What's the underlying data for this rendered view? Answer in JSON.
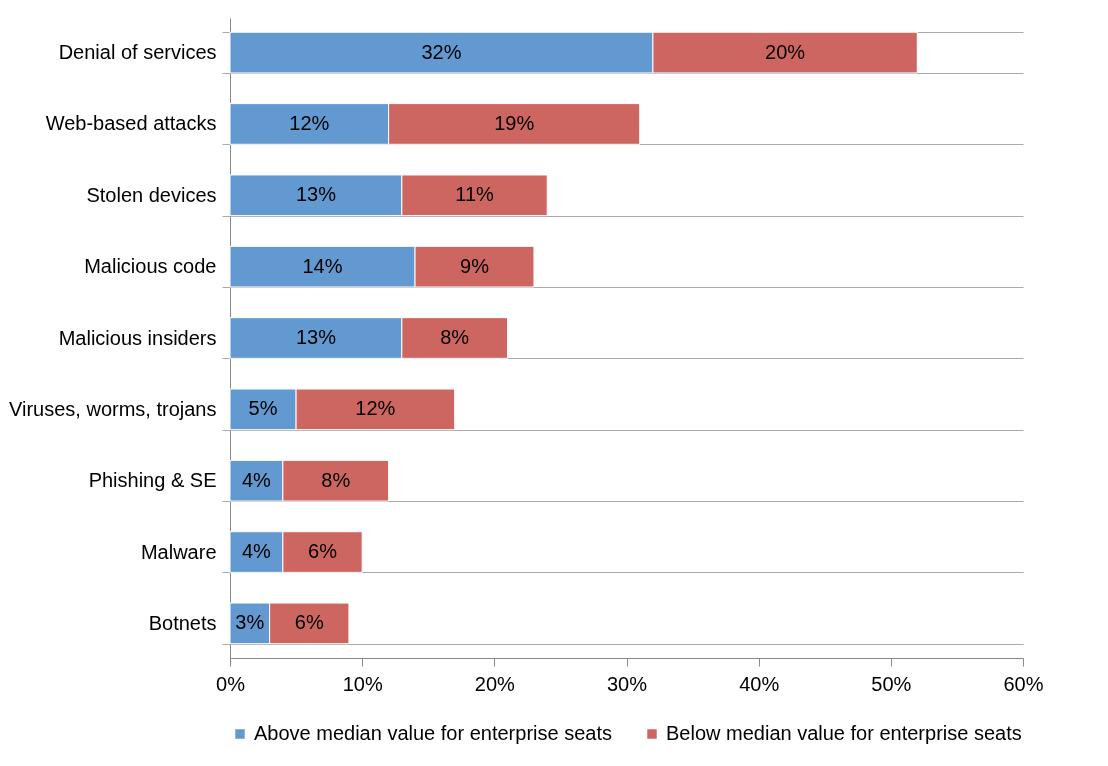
{
  "chart_data": {
    "type": "bar",
    "orientation": "horizontal",
    "stacked": true,
    "categories": [
      "Denial of services",
      "Web-based attacks",
      "Stolen devices",
      "Malicious code",
      "Malicious insiders",
      "Viruses, worms, trojans",
      "Phishing & SE",
      "Malware",
      "Botnets"
    ],
    "series": [
      {
        "name": "Above median value for enterprise seats",
        "color": "#6199d0",
        "values": [
          32,
          12,
          13,
          14,
          13,
          5,
          4,
          4,
          3
        ],
        "value_labels": [
          "32%",
          "12%",
          "13%",
          "14%",
          "13%",
          "5%",
          "4%",
          "4%",
          "3%"
        ]
      },
      {
        "name": "Below median value for enterprise seats",
        "color": "#cd6660",
        "values": [
          20,
          19,
          11,
          9,
          8,
          12,
          8,
          6,
          6
        ],
        "value_labels": [
          "20%",
          "19%",
          "11%",
          "9%",
          "8%",
          "12%",
          "8%",
          "6%",
          "6%"
        ]
      }
    ],
    "xlim": [
      0,
      60
    ],
    "xticks": [
      {
        "value": 0,
        "label": "0%"
      },
      {
        "value": 10,
        "label": "10%"
      },
      {
        "value": 20,
        "label": "20%"
      },
      {
        "value": 30,
        "label": "30%"
      },
      {
        "value": 40,
        "label": "40%"
      },
      {
        "value": 50,
        "label": "50%"
      },
      {
        "value": 60,
        "label": "60%"
      }
    ],
    "grid": "y",
    "legend": "bottom"
  }
}
